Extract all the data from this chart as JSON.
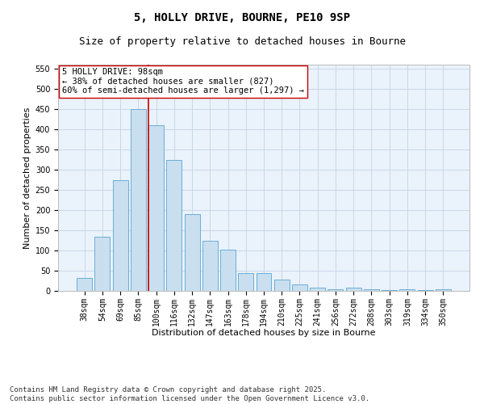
{
  "title_line1": "5, HOLLY DRIVE, BOURNE, PE10 9SP",
  "title_line2": "Size of property relative to detached houses in Bourne",
  "xlabel": "Distribution of detached houses by size in Bourne",
  "ylabel": "Number of detached properties",
  "categories": [
    "38sqm",
    "54sqm",
    "69sqm",
    "85sqm",
    "100sqm",
    "116sqm",
    "132sqm",
    "147sqm",
    "163sqm",
    "178sqm",
    "194sqm",
    "210sqm",
    "225sqm",
    "241sqm",
    "256sqm",
    "272sqm",
    "288sqm",
    "303sqm",
    "319sqm",
    "334sqm",
    "350sqm"
  ],
  "values": [
    33,
    135,
    275,
    450,
    410,
    325,
    190,
    125,
    103,
    45,
    45,
    29,
    16,
    8,
    5,
    9,
    4,
    3,
    5,
    3,
    5
  ],
  "bar_color": "#c9dff0",
  "bar_edge_color": "#6aaed6",
  "grid_color": "#c8d8e8",
  "background_color": "#eaf2fb",
  "vline_color": "#cc0000",
  "vline_index": 3.575,
  "annotation_text": "5 HOLLY DRIVE: 98sqm\n← 38% of detached houses are smaller (827)\n60% of semi-detached houses are larger (1,297) →",
  "annotation_box_facecolor": "#ffffff",
  "annotation_box_edgecolor": "#cc0000",
  "ylim": [
    0,
    560
  ],
  "yticks": [
    0,
    50,
    100,
    150,
    200,
    250,
    300,
    350,
    400,
    450,
    500,
    550
  ],
  "footer_line1": "Contains HM Land Registry data © Crown copyright and database right 2025.",
  "footer_line2": "Contains public sector information licensed under the Open Government Licence v3.0.",
  "title_fontsize": 10,
  "subtitle_fontsize": 9,
  "axis_label_fontsize": 8,
  "tick_fontsize": 7,
  "annotation_fontsize": 7.5,
  "footer_fontsize": 6.5
}
